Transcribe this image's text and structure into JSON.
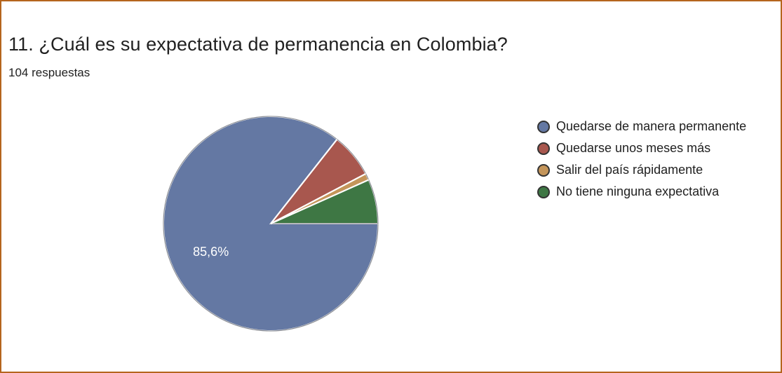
{
  "header": {
    "question": "11. ¿Cuál es su expectativa de permanencia en Colombia?",
    "responses": "104 respuestas"
  },
  "chart_data": {
    "type": "pie",
    "labels": [
      "Quedarse de manera permanente",
      "Quedarse unos meses más",
      "Salir del país rápidamente",
      "No tiene ninguna expectativa"
    ],
    "values": [
      85.6,
      6.7,
      1.0,
      6.7
    ],
    "colors": [
      "#6478a3",
      "#a8574e",
      "#c4955a",
      "#3e7744"
    ],
    "data_labels": [
      "85,6%",
      "",
      "",
      ""
    ],
    "legend_position": "right"
  }
}
